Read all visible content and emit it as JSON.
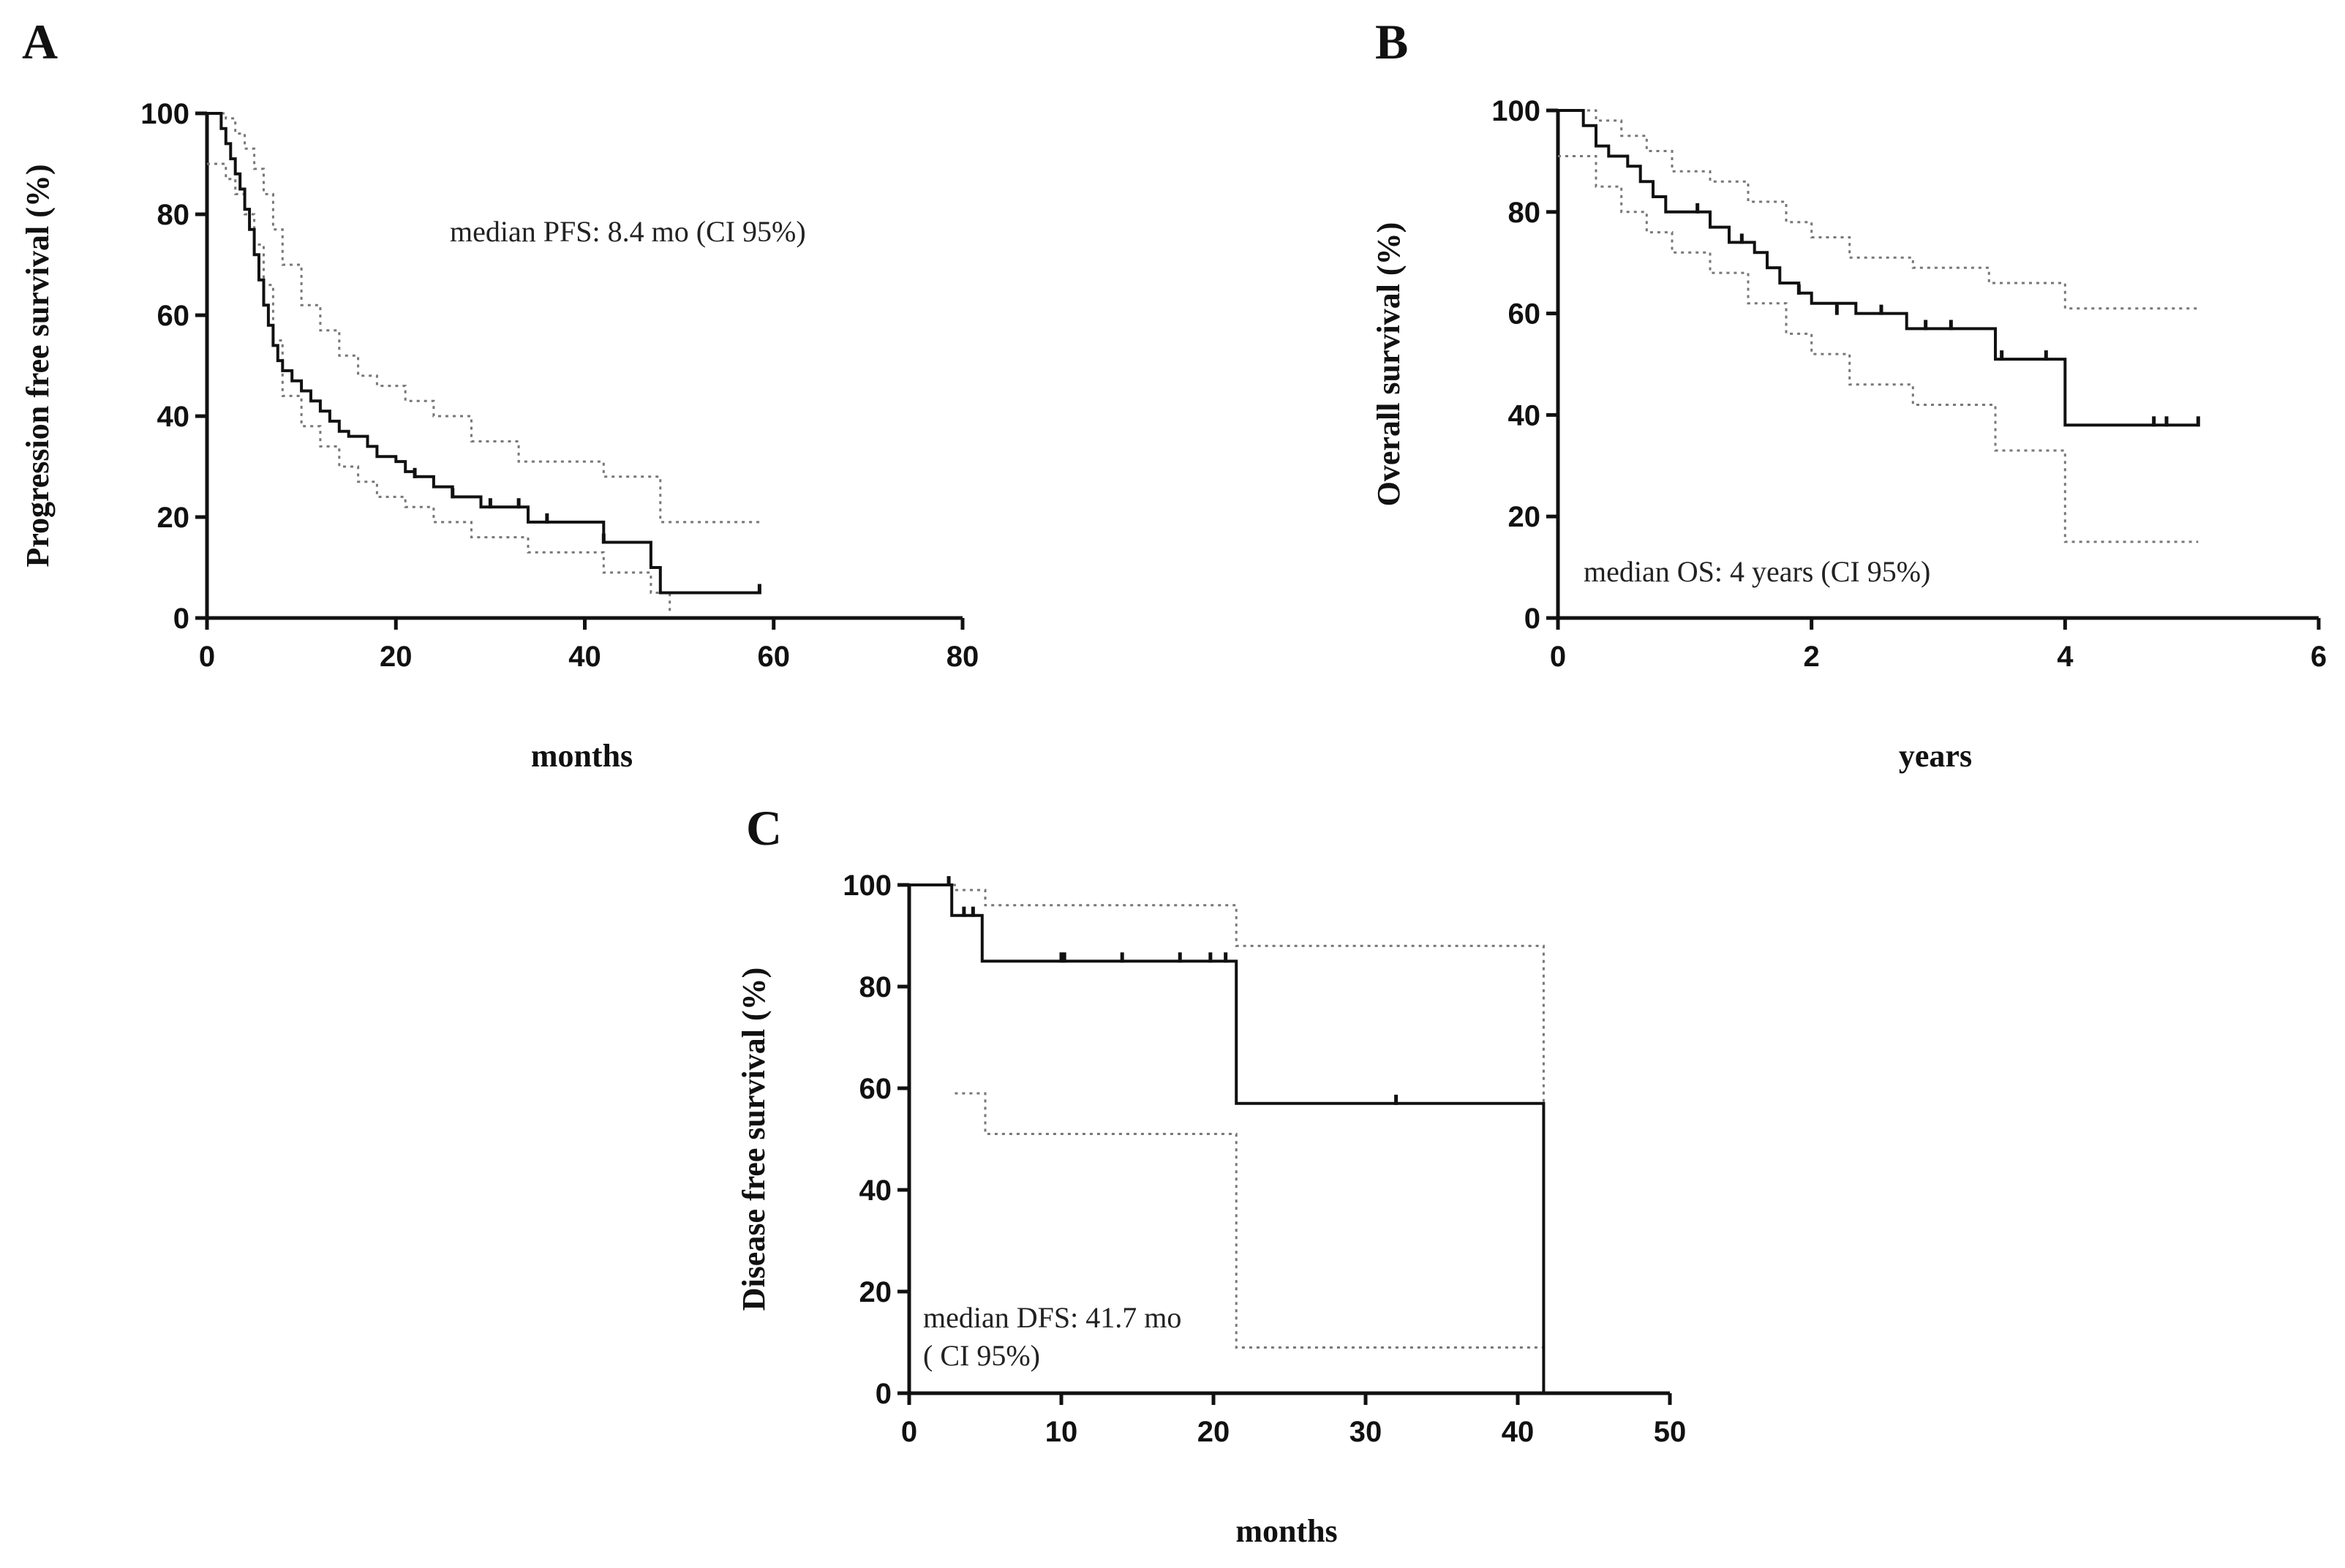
{
  "chart_data": [
    {
      "panel": "A",
      "type": "line",
      "subtype": "kaplan-meier",
      "xlabel": "months",
      "ylabel": "Progression free survival  (%)",
      "xlim": [
        0,
        80
      ],
      "ylim": [
        0,
        100
      ],
      "xticks": [
        0,
        20,
        40,
        60,
        80
      ],
      "yticks": [
        0,
        20,
        40,
        60,
        80,
        100
      ],
      "annotation_lines": [
        "median PFS: 8.4 mo (CI 95%)"
      ],
      "series": [
        {
          "name": "survival",
          "x": [
            0,
            1.5,
            2,
            2.5,
            3,
            3.5,
            4,
            4.5,
            5,
            5.5,
            6,
            6.5,
            7,
            7.5,
            8,
            9,
            10,
            11,
            12,
            13,
            14,
            15,
            17,
            18,
            20,
            21,
            22,
            24,
            26,
            29,
            34,
            42,
            47,
            48,
            58.5
          ],
          "y": [
            100,
            97,
            94,
            91,
            88,
            85,
            81,
            77,
            72,
            67,
            62,
            58,
            54,
            51,
            49,
            47,
            45,
            43,
            41,
            39,
            37,
            36,
            34,
            32,
            31,
            29,
            28,
            26,
            24,
            22,
            19,
            15,
            10,
            5,
            5
          ]
        },
        {
          "name": "upper 95% CI",
          "x": [
            0,
            2,
            3,
            4,
            5,
            6,
            7,
            8,
            10,
            12,
            14,
            16,
            18,
            21,
            24,
            28,
            33,
            42,
            48,
            58.5
          ],
          "y": [
            100,
            99,
            96,
            93,
            89,
            84,
            77,
            70,
            62,
            57,
            52,
            48,
            46,
            43,
            40,
            35,
            31,
            28,
            19,
            19
          ]
        },
        {
          "name": "lower 95% CI",
          "x": [
            0,
            2,
            3,
            4,
            5,
            6,
            7,
            8,
            10,
            12,
            14,
            16,
            18,
            21,
            24,
            28,
            34,
            42,
            47,
            49
          ],
          "y": [
            90,
            87,
            84,
            80,
            74,
            66,
            55,
            44,
            38,
            34,
            30,
            27,
            24,
            22,
            19,
            16,
            13,
            9,
            5,
            1
          ]
        }
      ],
      "censored": {
        "x": [
          22,
          26,
          30,
          33,
          36,
          42,
          58.5
        ],
        "y": [
          28,
          24,
          22,
          22,
          19,
          15,
          5
        ]
      }
    },
    {
      "panel": "B",
      "type": "line",
      "subtype": "kaplan-meier",
      "xlabel": "years",
      "ylabel": "Overall survival  (%)",
      "xlim": [
        0,
        6
      ],
      "ylim": [
        0,
        100
      ],
      "xticks": [
        0,
        2,
        4,
        6
      ],
      "yticks": [
        0,
        20,
        40,
        60,
        80,
        100
      ],
      "annotation_lines": [
        "median OS: 4 years (CI 95%)"
      ],
      "series": [
        {
          "name": "survival",
          "x": [
            0,
            0.2,
            0.3,
            0.4,
            0.55,
            0.65,
            0.75,
            0.85,
            1.2,
            1.35,
            1.55,
            1.65,
            1.75,
            1.9,
            2.0,
            2.35,
            2.75,
            3.45,
            4.0,
            5.05
          ],
          "y": [
            100,
            97,
            93,
            91,
            89,
            86,
            83,
            80,
            77,
            74,
            72,
            69,
            66,
            64,
            62,
            60,
            57,
            51,
            38,
            38
          ]
        },
        {
          "name": "upper 95% CI",
          "x": [
            0,
            0.3,
            0.5,
            0.7,
            0.9,
            1.2,
            1.5,
            1.8,
            2.0,
            2.3,
            2.8,
            3.4,
            4.0,
            5.05
          ],
          "y": [
            100,
            98,
            95,
            92,
            88,
            86,
            82,
            78,
            75,
            71,
            69,
            66,
            61,
            61
          ]
        },
        {
          "name": "lower 95% CI",
          "x": [
            0,
            0.3,
            0.5,
            0.7,
            0.9,
            1.2,
            1.5,
            1.8,
            2.0,
            2.3,
            2.8,
            3.45,
            4.0,
            5.05
          ],
          "y": [
            91,
            85,
            80,
            76,
            72,
            68,
            62,
            56,
            52,
            46,
            42,
            33,
            15,
            15
          ]
        }
      ],
      "censored": {
        "x": [
          1.1,
          1.45,
          1.9,
          2.2,
          2.55,
          2.9,
          3.1,
          3.5,
          3.85,
          4.7,
          4.8,
          5.05
        ],
        "y": [
          80,
          74,
          64,
          60,
          60,
          57,
          57,
          51,
          51,
          38,
          38,
          38
        ]
      }
    },
    {
      "panel": "C",
      "type": "line",
      "subtype": "kaplan-meier",
      "xlabel": "months",
      "ylabel": "Disease free survival  (%)",
      "xlim": [
        0,
        50
      ],
      "ylim": [
        0,
        100
      ],
      "xticks": [
        0,
        10,
        20,
        30,
        40,
        50
      ],
      "yticks": [
        0,
        20,
        40,
        60,
        80,
        100
      ],
      "annotation_lines": [
        "median DFS: 41.7 mo",
        "( CI 95%)"
      ],
      "series": [
        {
          "name": "survival",
          "x": [
            0,
            2.8,
            4.8,
            21.5,
            41.7
          ],
          "y": [
            100,
            94,
            85,
            57,
            0
          ]
        },
        {
          "name": "upper 95% CI",
          "x": [
            0,
            3,
            5,
            21.5,
            41.7
          ],
          "y": [
            100,
            99,
            96,
            88,
            0
          ]
        },
        {
          "name": "lower 95% CI",
          "x": [
            3,
            5,
            21.5,
            41.7
          ],
          "y": [
            59,
            51,
            9,
            0
          ]
        }
      ],
      "censored": {
        "x": [
          2.6,
          3.6,
          4.2,
          10.0,
          10.2,
          14.0,
          17.8,
          19.8,
          20.8,
          32.0
        ],
        "y": [
          100,
          94,
          94,
          85,
          85,
          85,
          85,
          85,
          85,
          57
        ]
      }
    }
  ]
}
